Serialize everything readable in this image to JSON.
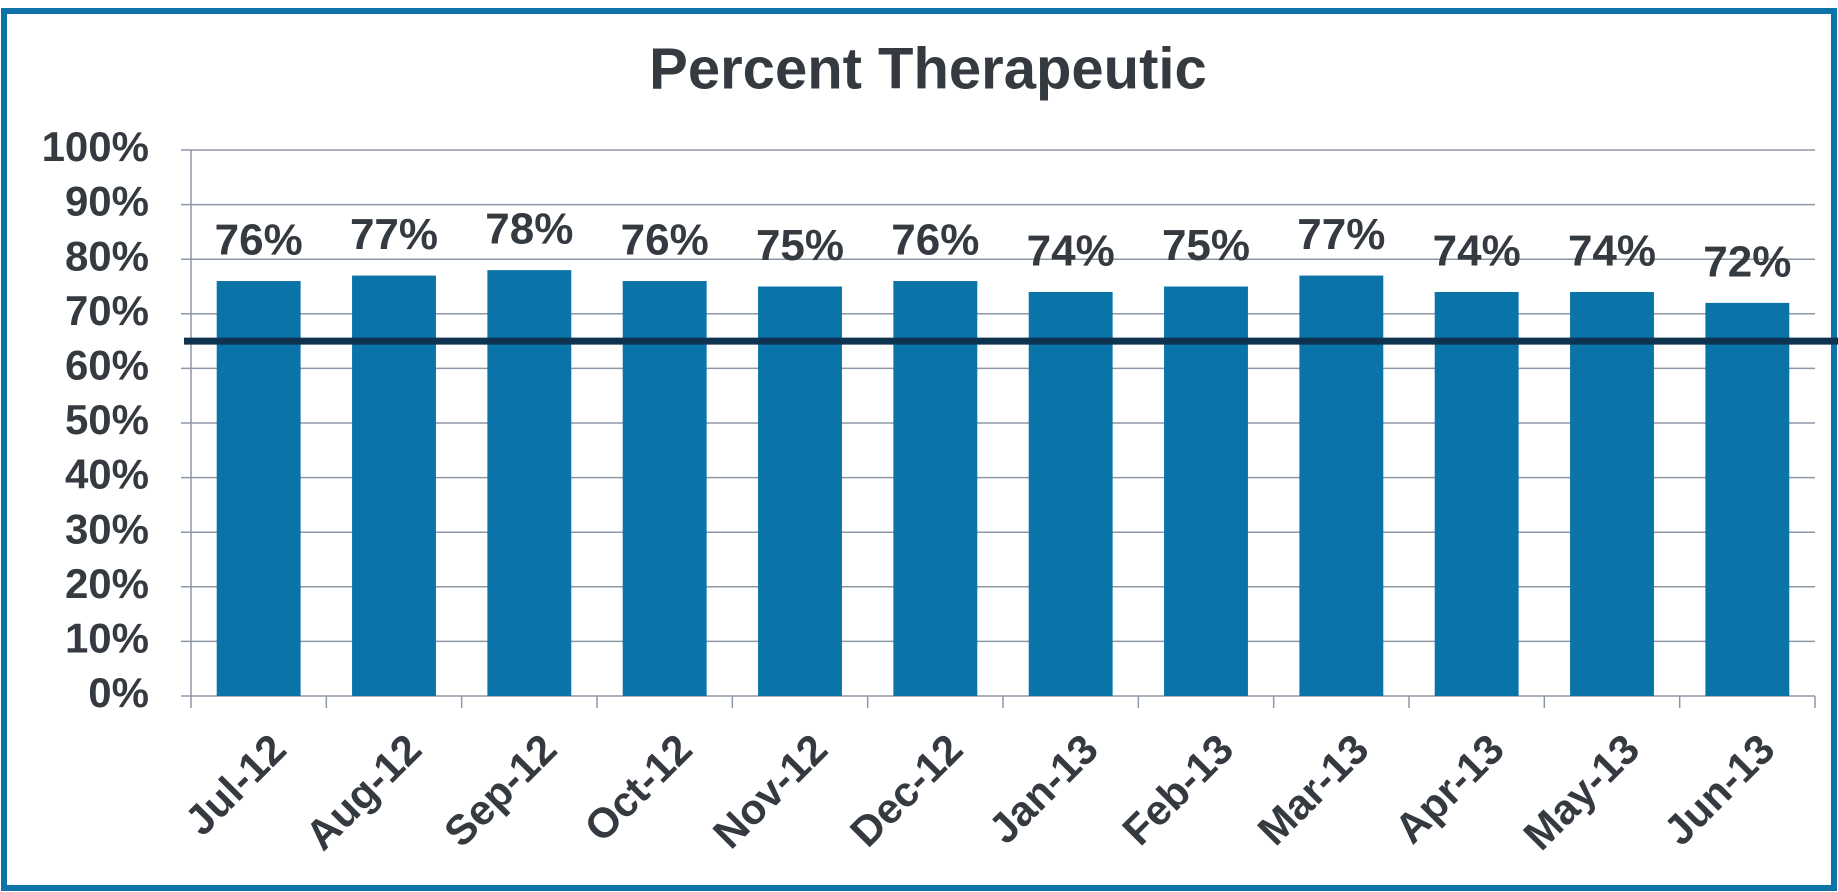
{
  "chart_data": {
    "type": "bar",
    "title": "Percent Therapeutic",
    "categories": [
      "Jul-12",
      "Aug-12",
      "Sep-12",
      "Oct-12",
      "Nov-12",
      "Dec-12",
      "Jan-13",
      "Feb-13",
      "Mar-13",
      "Apr-13",
      "May-13",
      "Jun-13"
    ],
    "values": [
      76,
      77,
      78,
      76,
      75,
      76,
      74,
      75,
      77,
      74,
      74,
      72
    ],
    "value_labels": [
      "76%",
      "77%",
      "78%",
      "76%",
      "75%",
      "76%",
      "74%",
      "75%",
      "77%",
      "74%",
      "74%",
      "72%"
    ],
    "color": "#0a74a9",
    "ylim": [
      0,
      100
    ],
    "yticks": [
      {
        "value": 0,
        "label": "0%"
      },
      {
        "value": 10,
        "label": "10%"
      },
      {
        "value": 20,
        "label": "20%"
      },
      {
        "value": 30,
        "label": "30%"
      },
      {
        "value": 40,
        "label": "40%"
      },
      {
        "value": 50,
        "label": "50%"
      },
      {
        "value": 60,
        "label": "60%"
      },
      {
        "value": 70,
        "label": "70%"
      },
      {
        "value": 80,
        "label": "80%"
      },
      {
        "value": 90,
        "label": "90%"
      },
      {
        "value": 100,
        "label": "100%"
      }
    ],
    "grid": true,
    "target": 65,
    "target_color": "#0d3350"
  }
}
